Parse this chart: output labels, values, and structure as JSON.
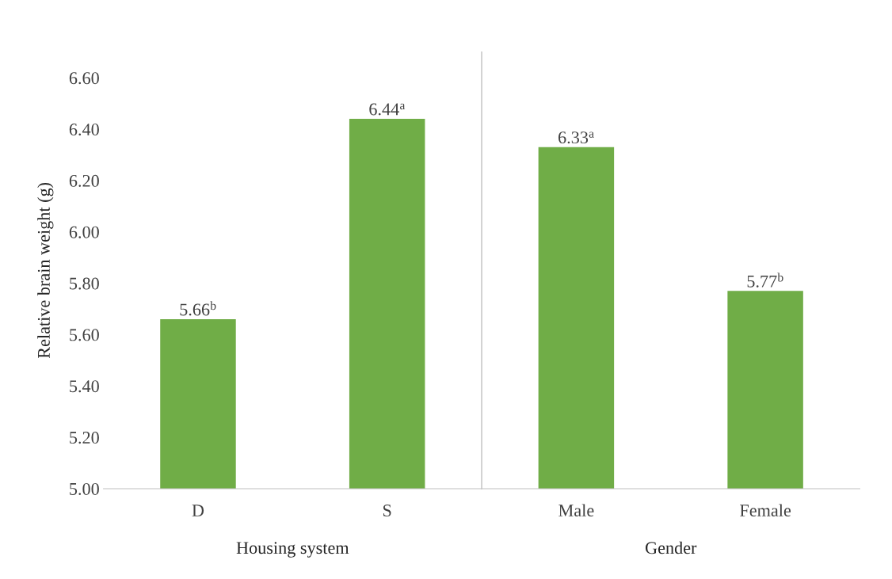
{
  "chart_data": {
    "type": "bar",
    "ylabel": "Relative brain weight (g)",
    "categories": [
      "D",
      "S",
      "Male",
      "Female"
    ],
    "values": [
      5.66,
      6.44,
      6.33,
      5.77
    ],
    "value_labels": [
      "5.66$^{b}$",
      "6.44$^{a}$",
      "6.33$^{a}$",
      "5.77$^{b}$"
    ],
    "color": "#70ad47",
    "ylim": [
      5.0,
      6.7
    ],
    "yticks": [
      {
        "value": 5.0,
        "label": "5.00"
      },
      {
        "value": 5.2,
        "label": "5.20"
      },
      {
        "value": 5.4,
        "label": "5.40"
      },
      {
        "value": 5.6,
        "label": "5.60"
      },
      {
        "value": 5.8,
        "label": "5.80"
      },
      {
        "value": 6.0,
        "label": "6.00"
      },
      {
        "value": 6.2,
        "label": "6.20"
      },
      {
        "value": 6.4,
        "label": "6.40"
      },
      {
        "value": 6.6,
        "label": "6.60"
      }
    ],
    "annotations": [
      "Housing system",
      "Gender"
    ],
    "grid": false,
    "legend": false
  }
}
